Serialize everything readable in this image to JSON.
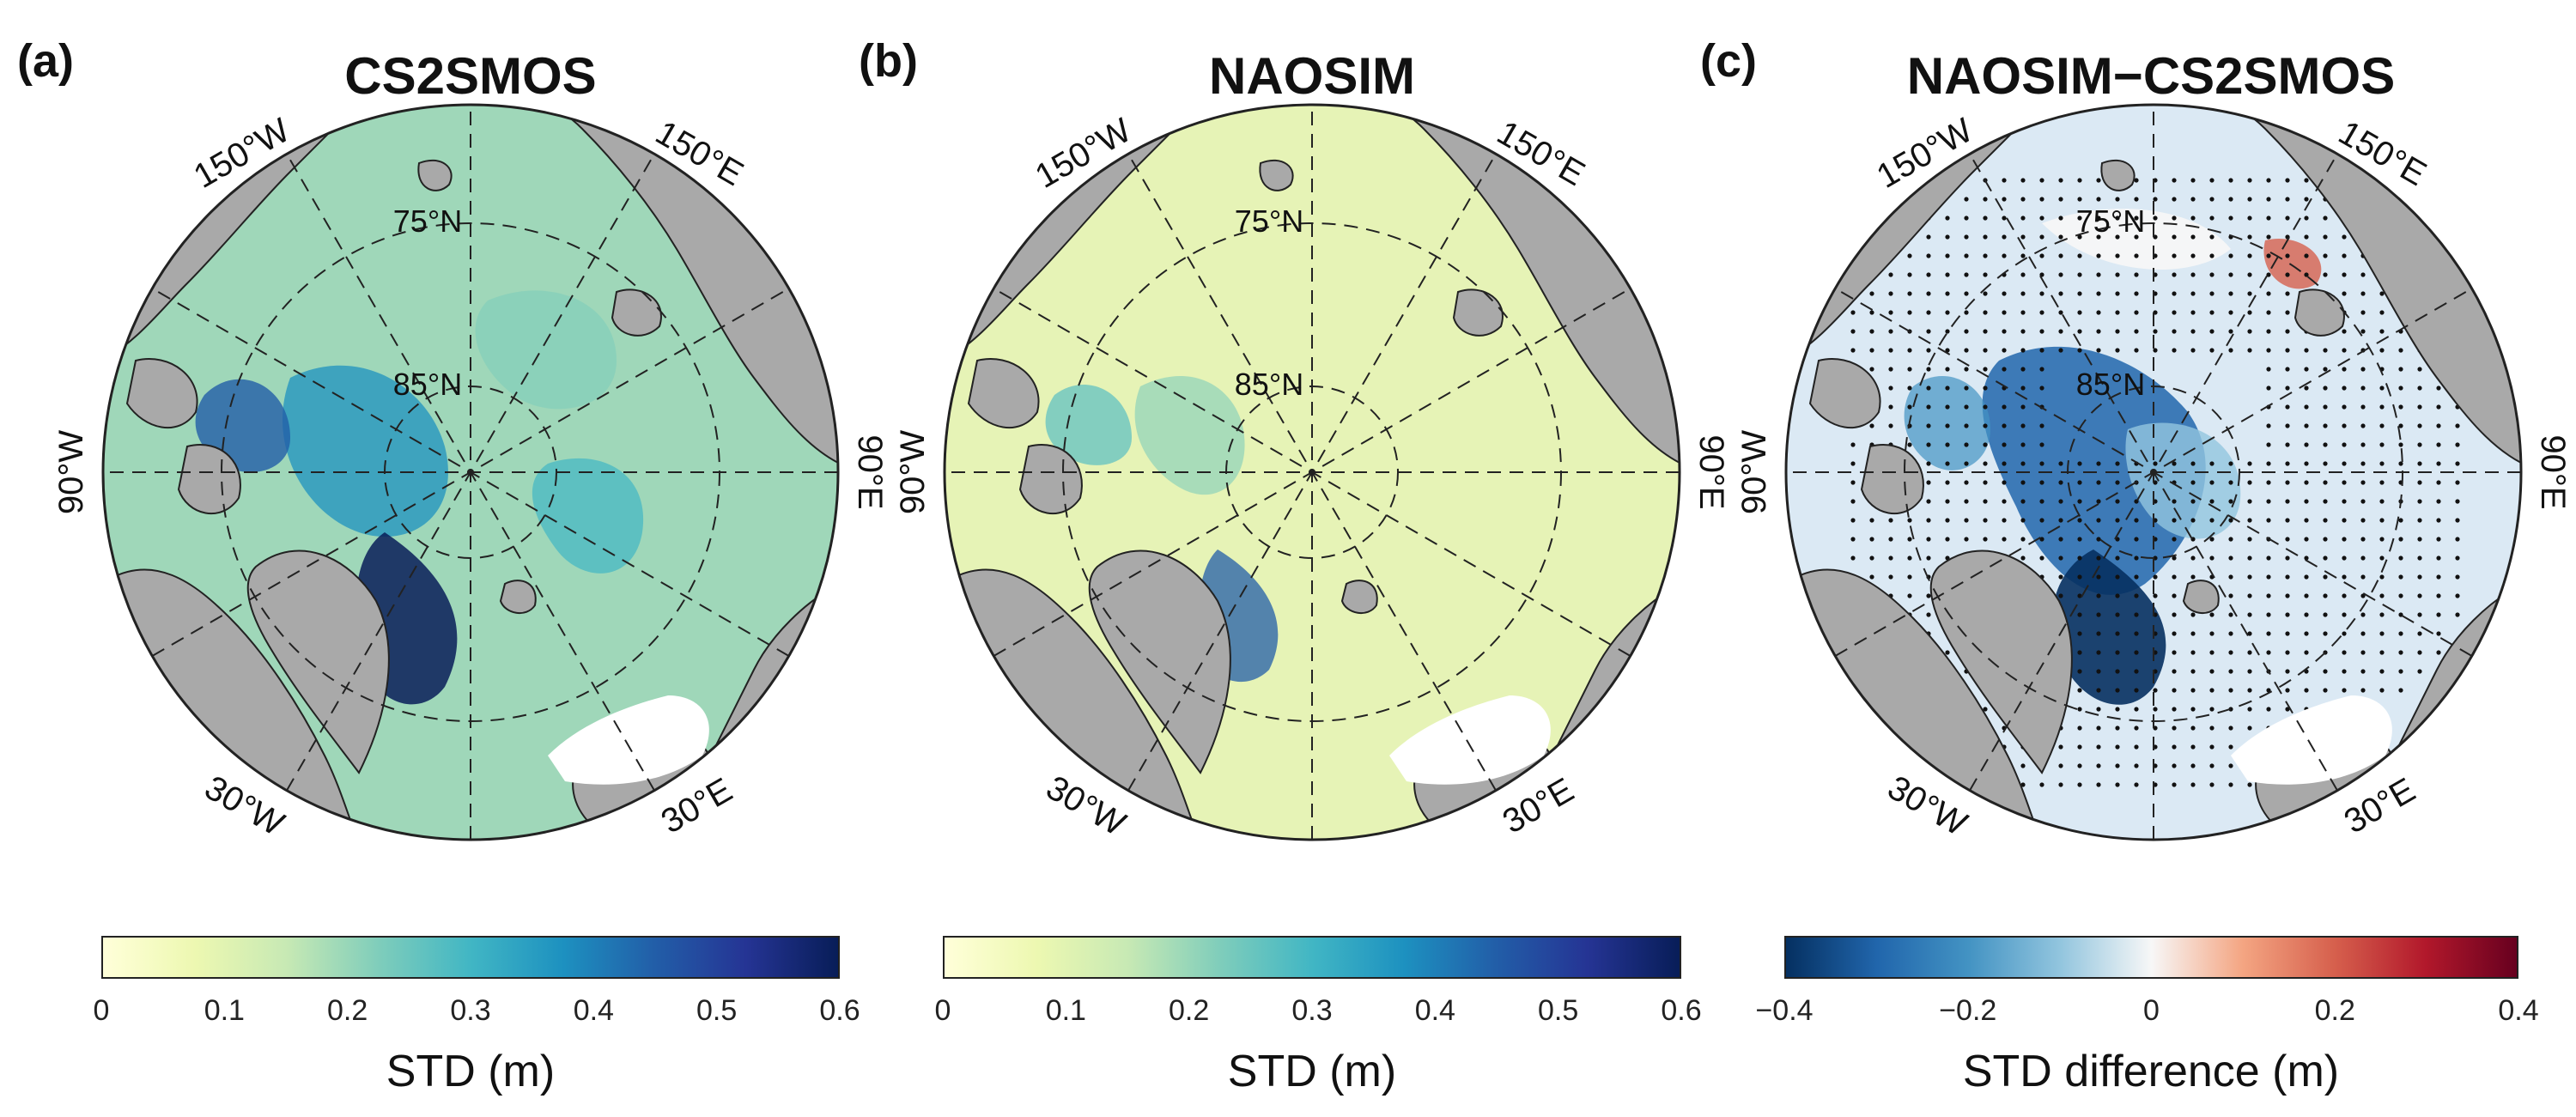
{
  "panels": [
    {
      "letter": "(a)",
      "title": "CS2SMOS",
      "cbar_ticks": [
        "0",
        "0.1",
        "0.2",
        "0.3",
        "0.4",
        "0.5",
        "0.6"
      ],
      "cbar_label": "STD (m)",
      "colormap": "YlGnBu"
    },
    {
      "letter": "(b)",
      "title": "NAOSIM",
      "cbar_ticks": [
        "0",
        "0.1",
        "0.2",
        "0.3",
        "0.4",
        "0.5",
        "0.6"
      ],
      "cbar_label": "STD (m)",
      "colormap": "YlGnBu"
    },
    {
      "letter": "(c)",
      "title": "NAOSIM−CS2SMOS",
      "cbar_ticks": [
        "−0.4",
        "−0.2",
        "0",
        "0.2",
        "0.4"
      ],
      "cbar_label": "STD difference (m)",
      "colormap": "RdBu_r"
    }
  ],
  "map_labels": {
    "lon_150W": "150°W",
    "lon_150E": "150°E",
    "lon_90W": "90°W",
    "lon_90E": "90°E",
    "lon_30W": "30°W",
    "lon_30E": "30°E",
    "lat_75N": "75°N",
    "lat_85N": "85°N"
  },
  "colors": {
    "land": "#a9a9a9",
    "ylgnbu": [
      "#ffffd9",
      "#edf8b1",
      "#c7e9b4",
      "#7fcdbb",
      "#41b6c4",
      "#1d91c0",
      "#225ea8",
      "#253494",
      "#081d58"
    ],
    "rdbu": [
      "#053061",
      "#2166ac",
      "#4393c3",
      "#92c5de",
      "#f7f7f7",
      "#f4a582",
      "#d6604d",
      "#b2182b",
      "#67001f"
    ]
  }
}
